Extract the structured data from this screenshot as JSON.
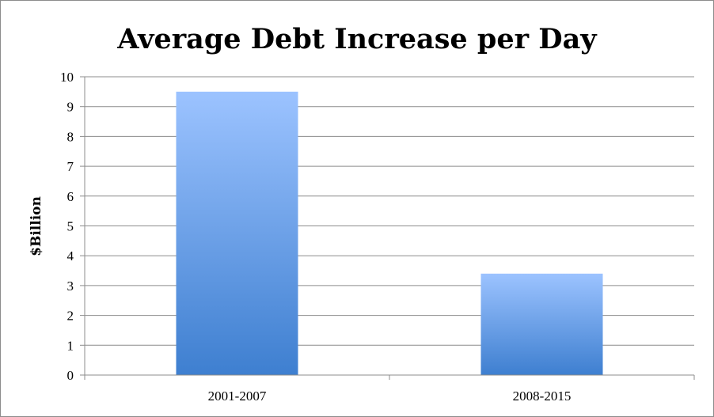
{
  "chart_data": {
    "type": "bar",
    "title": "Average Debt Increase per Day",
    "xlabel": "",
    "ylabel": "$Billion",
    "categories": [
      "2001-2007",
      "2008-2015"
    ],
    "values": [
      9.5,
      3.4
    ],
    "ylim": [
      0,
      10
    ],
    "yticks": [
      0,
      1,
      2,
      3,
      4,
      5,
      6,
      7,
      8,
      9,
      10
    ],
    "grid": true,
    "legend": "none",
    "colors": {
      "bar_top": "#9cc3ff",
      "bar_bottom": "#3e7fd0",
      "grid": "#8c8c8c",
      "axis": "#8c8c8c",
      "text": "#000000"
    }
  }
}
